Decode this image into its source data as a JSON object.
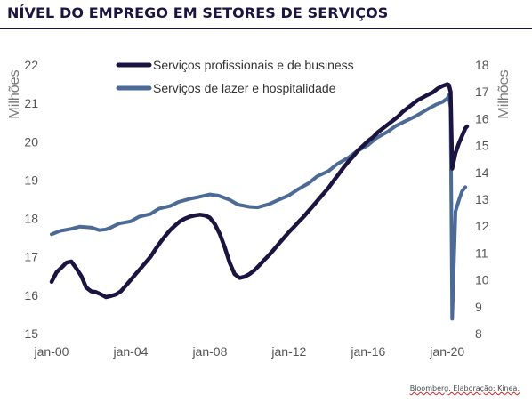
{
  "title": "NÍVEL DO EMPREGO EM SETORES DE SERVIÇOS",
  "source": "Bloomberg. Elaboração: Kinea.",
  "chart_data": {
    "type": "line",
    "x_ticks": [
      "jan-00",
      "jan-04",
      "jan-08",
      "jan-12",
      "jan-16",
      "jan-20"
    ],
    "y_left": {
      "label": "Milhões",
      "ticks": [
        15,
        16,
        17,
        18,
        19,
        20,
        21,
        22
      ],
      "range": [
        15,
        22
      ]
    },
    "y_right": {
      "label": "Milhões",
      "ticks": [
        8,
        9,
        10,
        11,
        12,
        13,
        14,
        15,
        16,
        17,
        18
      ],
      "range": [
        8,
        18
      ]
    },
    "grid": false,
    "legend_position": "top",
    "series": [
      {
        "name": "Serviços profissionais e de business",
        "axis": "left",
        "color": "#1c1440",
        "points": [
          [
            "2000-01",
            16.35
          ],
          [
            "2000-04",
            16.6
          ],
          [
            "2000-07",
            16.72
          ],
          [
            "2000-10",
            16.85
          ],
          [
            "2001-01",
            16.88
          ],
          [
            "2001-04",
            16.7
          ],
          [
            "2001-07",
            16.5
          ],
          [
            "2001-10",
            16.2
          ],
          [
            "2002-01",
            16.1
          ],
          [
            "2002-04",
            16.08
          ],
          [
            "2002-07",
            16.02
          ],
          [
            "2002-10",
            15.95
          ],
          [
            "2003-01",
            15.98
          ],
          [
            "2003-04",
            16.02
          ],
          [
            "2003-07",
            16.1
          ],
          [
            "2003-10",
            16.25
          ],
          [
            "2004-01",
            16.4
          ],
          [
            "2004-04",
            16.55
          ],
          [
            "2004-07",
            16.7
          ],
          [
            "2004-10",
            16.85
          ],
          [
            "2005-01",
            17.0
          ],
          [
            "2005-04",
            17.2
          ],
          [
            "2005-07",
            17.38
          ],
          [
            "2005-10",
            17.55
          ],
          [
            "2006-01",
            17.7
          ],
          [
            "2006-04",
            17.82
          ],
          [
            "2006-07",
            17.93
          ],
          [
            "2006-10",
            18.0
          ],
          [
            "2007-01",
            18.05
          ],
          [
            "2007-04",
            18.08
          ],
          [
            "2007-07",
            18.1
          ],
          [
            "2007-10",
            18.08
          ],
          [
            "2008-01",
            18.02
          ],
          [
            "2008-04",
            17.85
          ],
          [
            "2008-07",
            17.6
          ],
          [
            "2008-10",
            17.25
          ],
          [
            "2009-01",
            16.85
          ],
          [
            "2009-04",
            16.55
          ],
          [
            "2009-07",
            16.45
          ],
          [
            "2009-10",
            16.48
          ],
          [
            "2010-01",
            16.55
          ],
          [
            "2010-04",
            16.65
          ],
          [
            "2010-07",
            16.78
          ],
          [
            "2010-10",
            16.92
          ],
          [
            "2011-01",
            17.05
          ],
          [
            "2011-04",
            17.2
          ],
          [
            "2011-07",
            17.35
          ],
          [
            "2011-10",
            17.5
          ],
          [
            "2012-01",
            17.65
          ],
          [
            "2012-04",
            17.78
          ],
          [
            "2012-07",
            17.92
          ],
          [
            "2012-10",
            18.05
          ],
          [
            "2013-01",
            18.2
          ],
          [
            "2013-04",
            18.35
          ],
          [
            "2013-07",
            18.5
          ],
          [
            "2013-10",
            18.65
          ],
          [
            "2014-01",
            18.8
          ],
          [
            "2014-04",
            18.98
          ],
          [
            "2014-07",
            19.15
          ],
          [
            "2014-10",
            19.32
          ],
          [
            "2015-01",
            19.48
          ],
          [
            "2015-04",
            19.62
          ],
          [
            "2015-07",
            19.78
          ],
          [
            "2015-10",
            19.9
          ],
          [
            "2016-01",
            20.02
          ],
          [
            "2016-04",
            20.12
          ],
          [
            "2016-07",
            20.25
          ],
          [
            "2016-10",
            20.35
          ],
          [
            "2017-01",
            20.45
          ],
          [
            "2017-04",
            20.55
          ],
          [
            "2017-07",
            20.65
          ],
          [
            "2017-10",
            20.78
          ],
          [
            "2018-01",
            20.88
          ],
          [
            "2018-04",
            20.98
          ],
          [
            "2018-07",
            21.08
          ],
          [
            "2018-10",
            21.15
          ],
          [
            "2019-01",
            21.22
          ],
          [
            "2019-04",
            21.28
          ],
          [
            "2019-07",
            21.38
          ],
          [
            "2019-10",
            21.45
          ],
          [
            "2020-01",
            21.5
          ],
          [
            "2020-02",
            21.48
          ],
          [
            "2020-03",
            21.3
          ],
          [
            "2020-04",
            19.3
          ],
          [
            "2020-06",
            19.7
          ],
          [
            "2020-08",
            19.95
          ],
          [
            "2020-10",
            20.15
          ],
          [
            "2020-12",
            20.35
          ],
          [
            "2021-01",
            20.4
          ]
        ]
      },
      {
        "name": "Serviços de lazer e hospitalidade",
        "axis": "right",
        "color": "#4c6a96",
        "points": [
          [
            "2000-01",
            11.7
          ],
          [
            "2000-06",
            11.82
          ],
          [
            "2001-01",
            11.9
          ],
          [
            "2001-06",
            11.98
          ],
          [
            "2002-01",
            11.95
          ],
          [
            "2002-06",
            11.85
          ],
          [
            "2002-10",
            11.88
          ],
          [
            "2003-01",
            11.95
          ],
          [
            "2003-06",
            12.1
          ],
          [
            "2004-01",
            12.18
          ],
          [
            "2004-06",
            12.35
          ],
          [
            "2005-01",
            12.45
          ],
          [
            "2005-06",
            12.65
          ],
          [
            "2006-01",
            12.75
          ],
          [
            "2006-06",
            12.9
          ],
          [
            "2007-01",
            13.02
          ],
          [
            "2007-06",
            13.08
          ],
          [
            "2008-01",
            13.18
          ],
          [
            "2008-06",
            13.14
          ],
          [
            "2009-01",
            12.98
          ],
          [
            "2009-06",
            12.8
          ],
          [
            "2010-01",
            12.72
          ],
          [
            "2010-06",
            12.7
          ],
          [
            "2011-01",
            12.82
          ],
          [
            "2011-06",
            12.96
          ],
          [
            "2012-01",
            13.15
          ],
          [
            "2012-06",
            13.35
          ],
          [
            "2013-01",
            13.6
          ],
          [
            "2013-06",
            13.85
          ],
          [
            "2014-01",
            14.05
          ],
          [
            "2014-06",
            14.3
          ],
          [
            "2015-01",
            14.55
          ],
          [
            "2015-06",
            14.78
          ],
          [
            "2016-01",
            15.02
          ],
          [
            "2016-06",
            15.28
          ],
          [
            "2017-01",
            15.52
          ],
          [
            "2017-06",
            15.74
          ],
          [
            "2018-01",
            15.95
          ],
          [
            "2018-06",
            16.1
          ],
          [
            "2019-01",
            16.35
          ],
          [
            "2019-06",
            16.52
          ],
          [
            "2019-10",
            16.62
          ],
          [
            "2020-01",
            16.75
          ],
          [
            "2020-02",
            16.88
          ],
          [
            "2020-03",
            16.4
          ],
          [
            "2020-04",
            8.55
          ],
          [
            "2020-06",
            12.55
          ],
          [
            "2020-08",
            12.95
          ],
          [
            "2020-10",
            13.3
          ],
          [
            "2020-12",
            13.45
          ]
        ]
      }
    ]
  }
}
